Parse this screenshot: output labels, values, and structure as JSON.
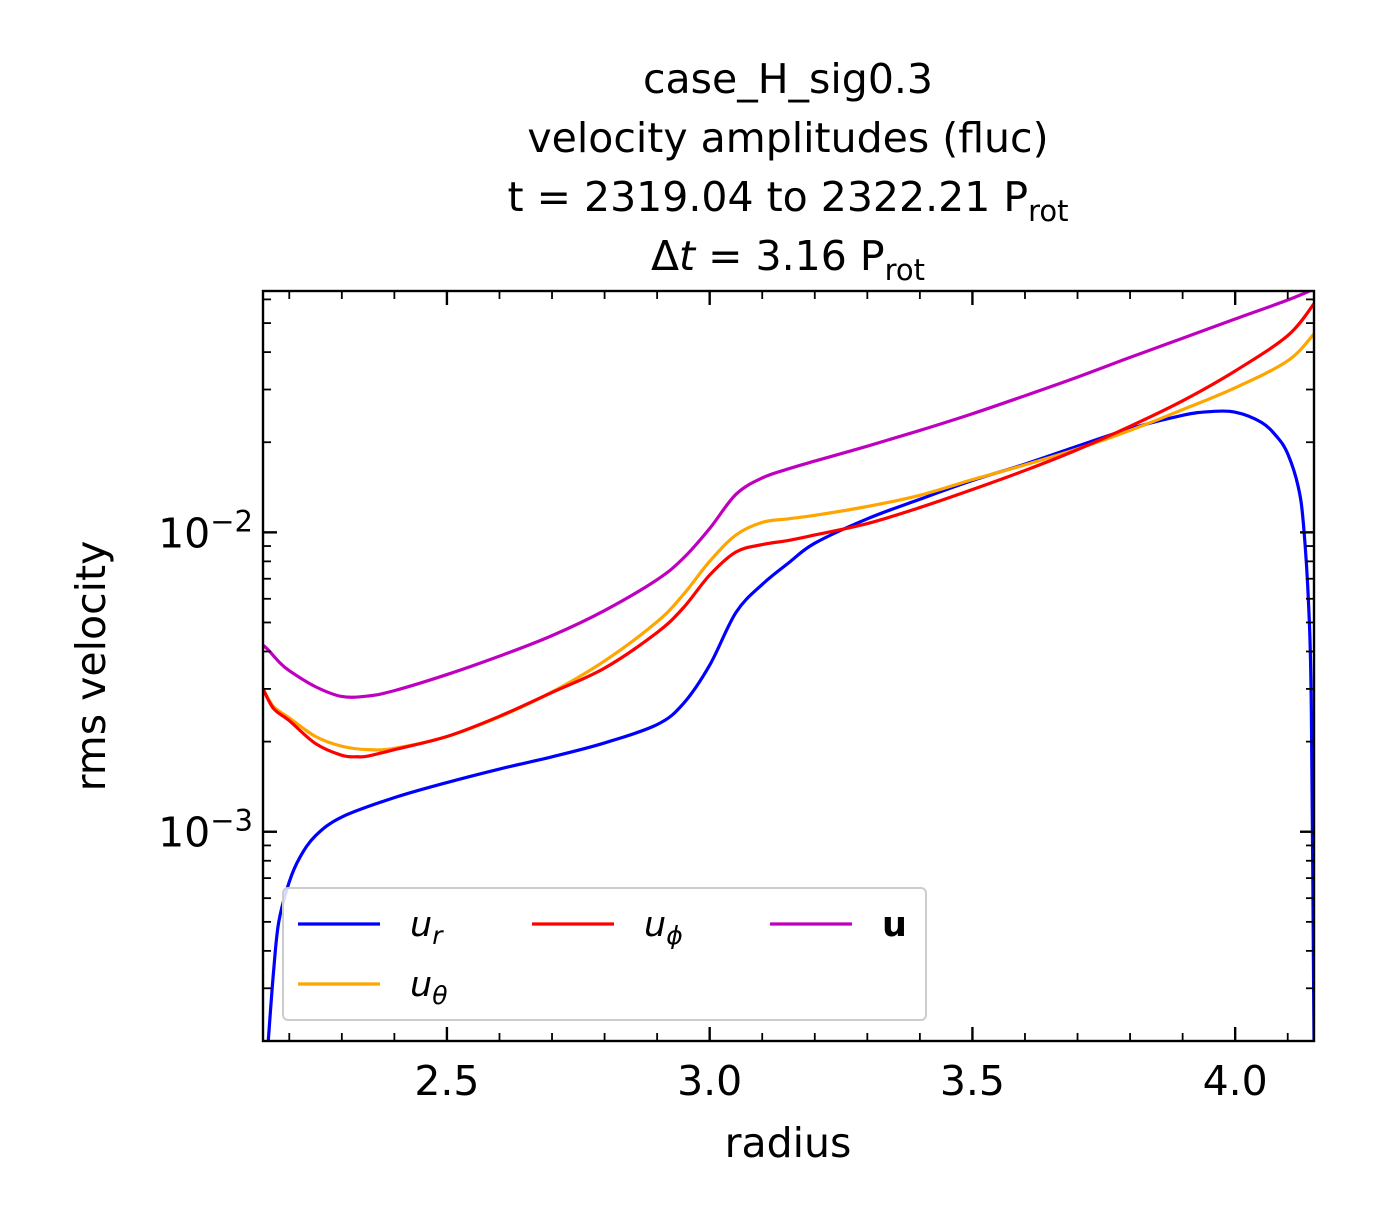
{
  "title": {
    "line1": "case_H_sig0.3",
    "line2": "velocity amplitudes (fluc)",
    "line3_prefix": "t = 2319.04 to 2322.21 P",
    "line3_sub": "rot",
    "line4_delta": "Δ",
    "line4_t": "t",
    "line4_suffix": " = 3.16 P",
    "line4_sub": "rot"
  },
  "chart_data": {
    "type": "line",
    "xlabel": "radius",
    "ylabel": "rms velocity",
    "xlim": [
      2.15,
      4.15
    ],
    "ylim": [
      0.0002,
      0.064
    ],
    "yscale": "log",
    "x_ticks": [
      "2.5",
      "3.0",
      "3.5",
      "4.0"
    ],
    "y_ticks": [
      {
        "base": "10",
        "exp": "−3",
        "value": 0.001
      },
      {
        "base": "10",
        "exp": "−2",
        "value": 0.01
      }
    ],
    "grid": false,
    "legend_position": "lower-left",
    "colors": {
      "u_r": "#0000ff",
      "u_theta": "#ffa500",
      "u_phi": "#ff0000",
      "u": "#bf00bf"
    },
    "series": [
      {
        "name": "u_r",
        "legend_base": "u",
        "legend_sub": "r",
        "legend_bold": false,
        "x": [
          2.16,
          2.17,
          2.18,
          2.2,
          2.22,
          2.25,
          2.3,
          2.4,
          2.5,
          2.6,
          2.7,
          2.8,
          2.9,
          2.95,
          3.0,
          3.05,
          3.1,
          3.15,
          3.2,
          3.3,
          3.4,
          3.5,
          3.6,
          3.7,
          3.8,
          3.9,
          3.95,
          4.0,
          4.05,
          4.08,
          4.1,
          4.12,
          4.13,
          4.14,
          4.145,
          4.15
        ],
        "y": [
          0.0002,
          0.00034,
          0.0005,
          0.00068,
          0.00082,
          0.00097,
          0.00112,
          0.0013,
          0.00146,
          0.00162,
          0.00178,
          0.00198,
          0.00228,
          0.00268,
          0.0036,
          0.0054,
          0.0067,
          0.0079,
          0.0092,
          0.0111,
          0.0129,
          0.0149,
          0.0169,
          0.0194,
          0.0222,
          0.0246,
          0.0253,
          0.0252,
          0.0233,
          0.0208,
          0.0183,
          0.0142,
          0.0106,
          0.0056,
          0.0025,
          0.0002
        ]
      },
      {
        "name": "u_theta",
        "legend_base": "u",
        "legend_sub": "θ",
        "legend_bold": false,
        "x": [
          2.15,
          2.17,
          2.2,
          2.25,
          2.3,
          2.35,
          2.4,
          2.5,
          2.6,
          2.7,
          2.8,
          2.9,
          2.95,
          3.0,
          3.05,
          3.1,
          3.15,
          3.2,
          3.3,
          3.4,
          3.5,
          3.6,
          3.7,
          3.8,
          3.9,
          4.0,
          4.1,
          4.15
        ],
        "y": [
          0.003,
          0.00262,
          0.0024,
          0.00208,
          0.00193,
          0.00188,
          0.0019,
          0.00208,
          0.00242,
          0.00293,
          0.00372,
          0.00503,
          0.0062,
          0.008,
          0.0098,
          0.0108,
          0.0111,
          0.0114,
          0.0122,
          0.0133,
          0.015,
          0.0168,
          0.019,
          0.0219,
          0.0257,
          0.0304,
          0.0374,
          0.046
        ]
      },
      {
        "name": "u_phi",
        "legend_base": "u",
        "legend_sub": "ϕ",
        "legend_bold": false,
        "x": [
          2.15,
          2.17,
          2.2,
          2.25,
          2.3,
          2.33,
          2.35,
          2.4,
          2.5,
          2.6,
          2.7,
          2.8,
          2.9,
          2.95,
          3.0,
          3.05,
          3.1,
          3.15,
          3.2,
          3.3,
          3.4,
          3.5,
          3.6,
          3.7,
          3.8,
          3.9,
          4.0,
          4.1,
          4.15
        ],
        "y": [
          0.003,
          0.00258,
          0.00235,
          0.00197,
          0.0018,
          0.00178,
          0.00179,
          0.00188,
          0.00208,
          0.00243,
          0.00292,
          0.00352,
          0.00463,
          0.0056,
          0.0072,
          0.0086,
          0.0091,
          0.0094,
          0.0098,
          0.0107,
          0.0121,
          0.0139,
          0.0161,
          0.0189,
          0.0226,
          0.0275,
          0.0346,
          0.0454,
          0.058
        ]
      },
      {
        "name": "u",
        "legend_base": "u",
        "legend_sub": "",
        "legend_bold": true,
        "x": [
          2.15,
          2.16,
          2.18,
          2.2,
          2.25,
          2.3,
          2.35,
          2.4,
          2.5,
          2.6,
          2.7,
          2.8,
          2.9,
          2.95,
          3.0,
          3.05,
          3.1,
          3.15,
          3.2,
          3.3,
          3.4,
          3.5,
          3.6,
          3.7,
          3.8,
          3.9,
          4.0,
          4.1,
          4.15
        ],
        "y": [
          0.0042,
          0.00405,
          0.0037,
          0.00345,
          0.00305,
          0.00283,
          0.00284,
          0.00296,
          0.00335,
          0.00386,
          0.00452,
          0.00548,
          0.00695,
          0.0082,
          0.0103,
          0.0134,
          0.0152,
          0.0163,
          0.0173,
          0.0194,
          0.0219,
          0.0249,
          0.0286,
          0.033,
          0.0384,
          0.0445,
          0.0516,
          0.0597,
          0.065
        ]
      }
    ]
  }
}
